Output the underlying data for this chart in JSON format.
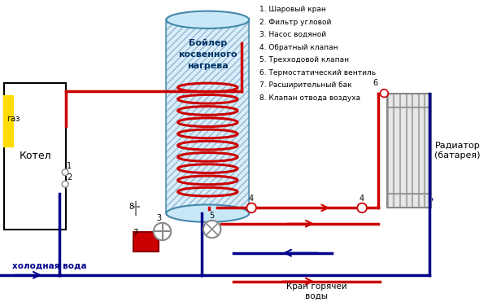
{
  "bg_color": "#ffffff",
  "red": "#cc0000",
  "blue": "#00008b",
  "yellow": "#ffdd00",
  "gray": "#888888",
  "light_gray": "#cccccc",
  "boiler_fill": "#c8e8f8",
  "legend_items": [
    "1. Шаровый кран",
    "2. Фильтр угловой",
    "3. Насос водяной",
    "4. Обратный клапан",
    "5. Трехходовой клапан",
    "6. Термостатический вентиль",
    "7. Расширительный бак",
    "8. Клапан отвода воздуха"
  ],
  "boiler_label": "Бойлер\nкосвенного\nнагрева",
  "kotel_label": "Котел",
  "gaz_label": "газ",
  "radiator_label": "Радиатор\n(батарея)",
  "cold_water_label": "холодная вода",
  "hot_water_label": "Кран горячей\nводы"
}
